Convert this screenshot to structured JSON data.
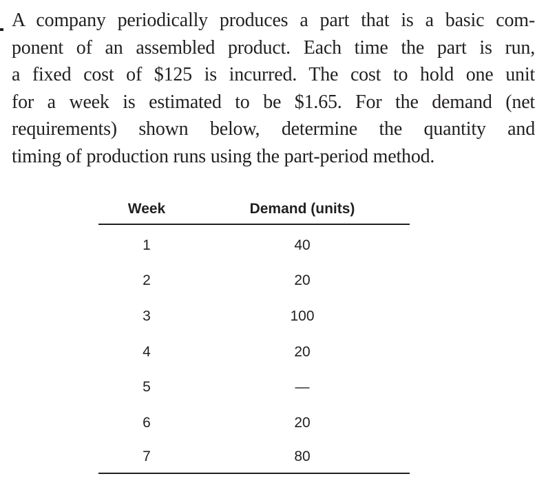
{
  "problem": {
    "lines": [
      "A company periodically produces a part that is a basic com-",
      "ponent of an assembled product. Each time the part is run,",
      "a fixed cost of $125 is incurred. The cost to hold one unit",
      "for a week is estimated to be $1.65. For the demand (net",
      "requirements) shown below, determine the quantity and",
      "timing of production runs using the part-period method."
    ]
  },
  "table": {
    "headers": {
      "week": "Week",
      "demand": "Demand (units)"
    },
    "rows": [
      {
        "week": "1",
        "demand": "40"
      },
      {
        "week": "2",
        "demand": "20"
      },
      {
        "week": "3",
        "demand": "100"
      },
      {
        "week": "4",
        "demand": "20"
      },
      {
        "week": "5",
        "demand": "—"
      },
      {
        "week": "6",
        "demand": "20"
      },
      {
        "week": "7",
        "demand": "80"
      }
    ]
  }
}
